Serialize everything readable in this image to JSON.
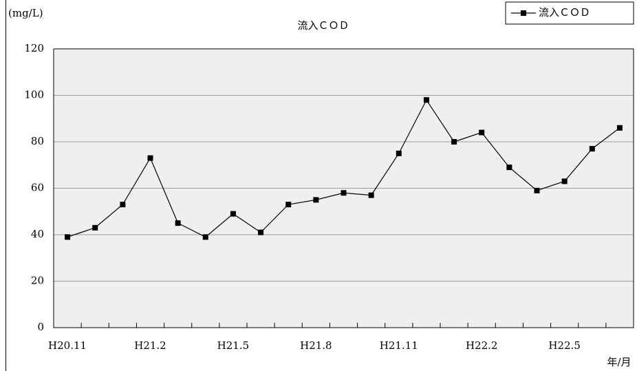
{
  "chart_data": {
    "type": "line",
    "title": "流入ＣＯＤ",
    "y_label": "(mg/L)",
    "x_label": "年/月",
    "categories": [
      "H20.11",
      null,
      null,
      "H21.2",
      null,
      null,
      "H21.5",
      null,
      null,
      "H21.8",
      null,
      null,
      "H21.11",
      null,
      null,
      "H22.2",
      null,
      null,
      "H22.5",
      null,
      null
    ],
    "series": [
      {
        "name": "流入ＣＯＤ",
        "color": "#000000",
        "values": [
          39,
          43,
          53,
          73,
          45,
          39,
          49,
          41,
          53,
          55,
          58,
          57,
          75,
          98,
          80,
          84,
          69,
          59,
          63,
          77,
          86
        ]
      }
    ],
    "ylim": [
      0,
      120
    ],
    "yticks": [
      0,
      20,
      40,
      60,
      80,
      100,
      120
    ],
    "grid": true,
    "legend": "top-right"
  }
}
